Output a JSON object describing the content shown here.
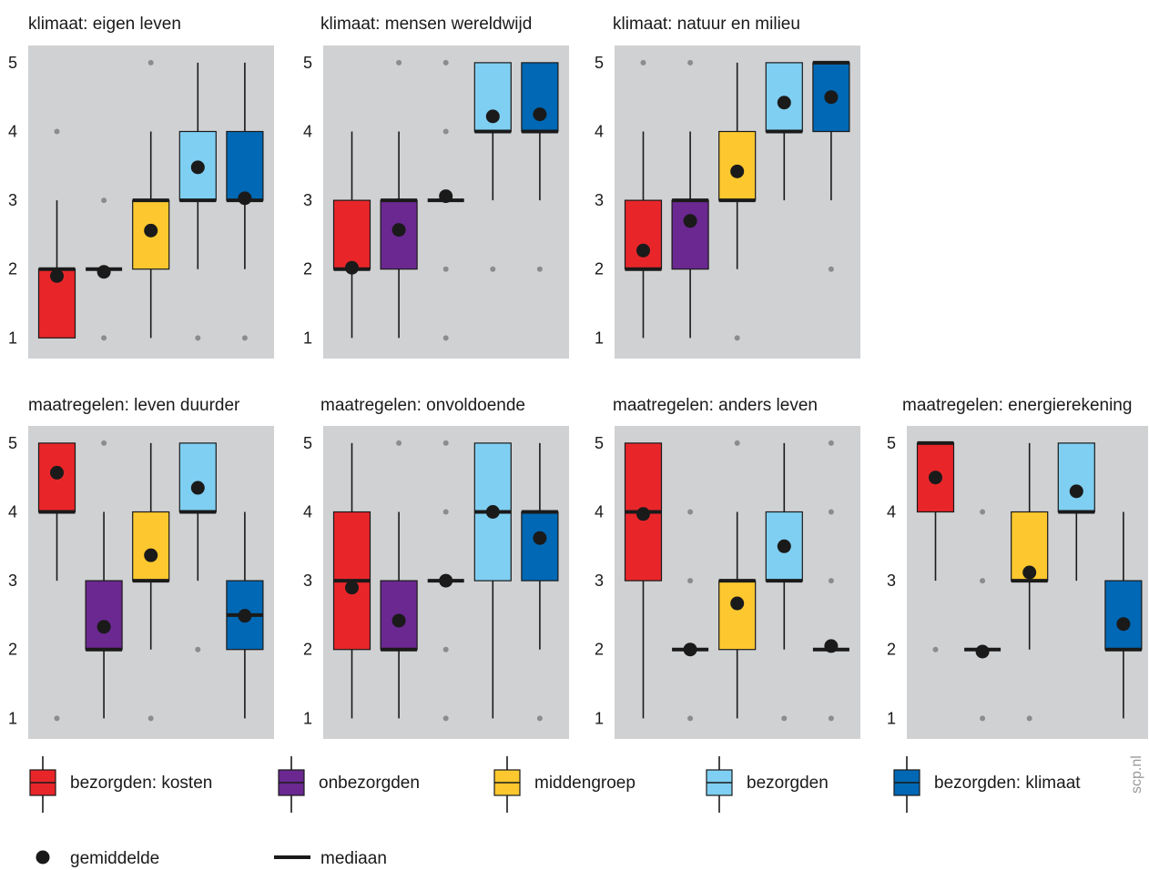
{
  "chart_data": [
    {
      "type": "box",
      "title": "klimaat: eigen leven",
      "ylim": [
        0.7,
        5.25
      ],
      "yticks": [
        "1",
        "2",
        "3",
        "4",
        "5"
      ],
      "boxes": [
        {
          "group": "bezorgden: kosten",
          "q1": 1,
          "median": 2,
          "q3": 2,
          "whisker_low": 1,
          "whisker_high": 3,
          "mean": 1.9,
          "outliers": [
            4
          ]
        },
        {
          "group": "onbezorgden",
          "q1": 2,
          "median": 2,
          "q3": 2,
          "whisker_low": 2,
          "whisker_high": 2,
          "mean": 1.96,
          "outliers": [
            1,
            3
          ]
        },
        {
          "group": "middengroep",
          "q1": 2,
          "median": 3,
          "q3": 3,
          "whisker_low": 1,
          "whisker_high": 4,
          "mean": 2.56,
          "outliers": [
            5
          ]
        },
        {
          "group": "bezorgden",
          "q1": 3,
          "median": 3,
          "q3": 4,
          "whisker_low": 2,
          "whisker_high": 5,
          "mean": 3.48,
          "outliers": [
            1
          ]
        },
        {
          "group": "bezorgden: klimaat",
          "q1": 3,
          "median": 3,
          "q3": 4,
          "whisker_low": 2,
          "whisker_high": 5,
          "mean": 3.03,
          "outliers": [
            1
          ]
        }
      ]
    },
    {
      "type": "box",
      "title": "klimaat: mensen wereldwijd",
      "ylim": [
        0.7,
        5.25
      ],
      "yticks": [
        "1",
        "2",
        "3",
        "4",
        "5"
      ],
      "boxes": [
        {
          "group": "bezorgden: kosten",
          "q1": 2,
          "median": 2,
          "q3": 3,
          "whisker_low": 1,
          "whisker_high": 4,
          "mean": 2.02,
          "outliers": []
        },
        {
          "group": "onbezorgden",
          "q1": 2,
          "median": 3,
          "q3": 3,
          "whisker_low": 1,
          "whisker_high": 4,
          "mean": 2.57,
          "outliers": [
            5
          ]
        },
        {
          "group": "middengroep",
          "q1": 3,
          "median": 3,
          "q3": 3,
          "whisker_low": 3,
          "whisker_high": 3,
          "mean": 3.06,
          "outliers": [
            1,
            2,
            4,
            5
          ]
        },
        {
          "group": "bezorgden",
          "q1": 4,
          "median": 4,
          "q3": 5,
          "whisker_low": 3,
          "whisker_high": 5,
          "mean": 4.22,
          "outliers": [
            2
          ]
        },
        {
          "group": "bezorgden: klimaat",
          "q1": 4,
          "median": 4,
          "q3": 5,
          "whisker_low": 3,
          "whisker_high": 5,
          "mean": 4.25,
          "outliers": [
            2
          ]
        }
      ]
    },
    {
      "type": "box",
      "title": "klimaat: natuur en milieu",
      "ylim": [
        0.7,
        5.25
      ],
      "yticks": [
        "1",
        "2",
        "3",
        "4",
        "5"
      ],
      "boxes": [
        {
          "group": "bezorgden: kosten",
          "q1": 2,
          "median": 2,
          "q3": 3,
          "whisker_low": 1,
          "whisker_high": 4,
          "mean": 2.27,
          "outliers": [
            5
          ]
        },
        {
          "group": "onbezorgden",
          "q1": 2,
          "median": 3,
          "q3": 3,
          "whisker_low": 1,
          "whisker_high": 4,
          "mean": 2.7,
          "outliers": [
            5
          ]
        },
        {
          "group": "middengroep",
          "q1": 3,
          "median": 3,
          "q3": 4,
          "whisker_low": 2,
          "whisker_high": 5,
          "mean": 3.42,
          "outliers": [
            1
          ]
        },
        {
          "group": "bezorgden",
          "q1": 4,
          "median": 4,
          "q3": 5,
          "whisker_low": 3,
          "whisker_high": 5,
          "mean": 4.42,
          "outliers": []
        },
        {
          "group": "bezorgden: klimaat",
          "q1": 4,
          "median": 5,
          "q3": 5,
          "whisker_low": 3,
          "whisker_high": 5,
          "mean": 4.5,
          "outliers": [
            2
          ]
        }
      ]
    },
    {
      "type": "box",
      "title": "maatregelen: leven duurder",
      "ylim": [
        0.7,
        5.25
      ],
      "yticks": [
        "1",
        "2",
        "3",
        "4",
        "5"
      ],
      "boxes": [
        {
          "group": "bezorgden: kosten",
          "q1": 4,
          "median": 4,
          "q3": 5,
          "whisker_low": 3,
          "whisker_high": 5,
          "mean": 4.57,
          "outliers": [
            1
          ]
        },
        {
          "group": "onbezorgden",
          "q1": 2,
          "median": 2,
          "q3": 3,
          "whisker_low": 1,
          "whisker_high": 4,
          "mean": 2.33,
          "outliers": [
            5
          ]
        },
        {
          "group": "middengroep",
          "q1": 3,
          "median": 3,
          "q3": 4,
          "whisker_low": 2,
          "whisker_high": 5,
          "mean": 3.37,
          "outliers": [
            1
          ]
        },
        {
          "group": "bezorgden",
          "q1": 4,
          "median": 4,
          "q3": 5,
          "whisker_low": 3,
          "whisker_high": 5,
          "mean": 4.35,
          "outliers": [
            2
          ]
        },
        {
          "group": "bezorgden: klimaat",
          "q1": 2,
          "median": 2.5,
          "q3": 3,
          "whisker_low": 1,
          "whisker_high": 4,
          "mean": 2.49,
          "outliers": []
        }
      ]
    },
    {
      "type": "box",
      "title": "maatregelen: onvoldoende",
      "ylim": [
        0.7,
        5.25
      ],
      "yticks": [
        "1",
        "2",
        "3",
        "4",
        "5"
      ],
      "boxes": [
        {
          "group": "bezorgden: kosten",
          "q1": 2,
          "median": 3,
          "q3": 4,
          "whisker_low": 1,
          "whisker_high": 5,
          "mean": 2.9,
          "outliers": []
        },
        {
          "group": "onbezorgden",
          "q1": 2,
          "median": 2,
          "q3": 3,
          "whisker_low": 1,
          "whisker_high": 4,
          "mean": 2.42,
          "outliers": [
            5
          ]
        },
        {
          "group": "middengroep",
          "q1": 3,
          "median": 3,
          "q3": 3,
          "whisker_low": 3,
          "whisker_high": 3,
          "mean": 3.0,
          "outliers": [
            1,
            2,
            4,
            5
          ]
        },
        {
          "group": "bezorgden",
          "q1": 3,
          "median": 4,
          "q3": 5,
          "whisker_low": 1,
          "whisker_high": 5,
          "mean": 4.0,
          "outliers": []
        },
        {
          "group": "bezorgden: klimaat",
          "q1": 3,
          "median": 4,
          "q3": 4,
          "whisker_low": 2,
          "whisker_high": 5,
          "mean": 3.62,
          "outliers": [
            1
          ]
        }
      ]
    },
    {
      "type": "box",
      "title": "maatregelen: anders leven",
      "ylim": [
        0.7,
        5.25
      ],
      "yticks": [
        "1",
        "2",
        "3",
        "4",
        "5"
      ],
      "boxes": [
        {
          "group": "bezorgden: kosten",
          "q1": 3,
          "median": 4,
          "q3": 5,
          "whisker_low": 1,
          "whisker_high": 5,
          "mean": 3.97,
          "outliers": []
        },
        {
          "group": "onbezorgden",
          "q1": 2,
          "median": 2,
          "q3": 2,
          "whisker_low": 2,
          "whisker_high": 2,
          "mean": 2.0,
          "outliers": [
            1,
            3,
            4
          ]
        },
        {
          "group": "middengroep",
          "q1": 2,
          "median": 3,
          "q3": 3,
          "whisker_low": 1,
          "whisker_high": 4,
          "mean": 2.67,
          "outliers": [
            5
          ]
        },
        {
          "group": "bezorgden",
          "q1": 3,
          "median": 3,
          "q3": 4,
          "whisker_low": 2,
          "whisker_high": 5,
          "mean": 3.5,
          "outliers": [
            1
          ]
        },
        {
          "group": "bezorgden: klimaat",
          "q1": 2,
          "median": 2,
          "q3": 2,
          "whisker_low": 2,
          "whisker_high": 2,
          "mean": 2.05,
          "outliers": [
            1,
            3,
            4,
            5
          ]
        }
      ]
    },
    {
      "type": "box",
      "title": "maatregelen: energierekening",
      "ylim": [
        0.7,
        5.25
      ],
      "yticks": [
        "1",
        "2",
        "3",
        "4",
        "5"
      ],
      "boxes": [
        {
          "group": "bezorgden: kosten",
          "q1": 4,
          "median": 5,
          "q3": 5,
          "whisker_low": 3,
          "whisker_high": 5,
          "mean": 4.5,
          "outliers": [
            2
          ]
        },
        {
          "group": "onbezorgden",
          "q1": 2,
          "median": 2,
          "q3": 2,
          "whisker_low": 2,
          "whisker_high": 2,
          "mean": 1.97,
          "outliers": [
            1,
            3,
            4
          ]
        },
        {
          "group": "middengroep",
          "q1": 3,
          "median": 3,
          "q3": 4,
          "whisker_low": 2,
          "whisker_high": 5,
          "mean": 3.12,
          "outliers": [
            1
          ]
        },
        {
          "group": "bezorgden",
          "q1": 4,
          "median": 4,
          "q3": 5,
          "whisker_low": 3,
          "whisker_high": 5,
          "mean": 4.3,
          "outliers": []
        },
        {
          "group": "bezorgden: klimaat",
          "q1": 2,
          "median": 2,
          "q3": 3,
          "whisker_low": 1,
          "whisker_high": 4,
          "mean": 2.37,
          "outliers": []
        }
      ]
    }
  ],
  "groups": [
    {
      "name": "bezorgden: kosten",
      "color": "#e8262a"
    },
    {
      "name": "onbezorgden",
      "color": "#6a2890"
    },
    {
      "name": "middengroep",
      "color": "#fdc82f"
    },
    {
      "name": "bezorgden",
      "color": "#7fcff2"
    },
    {
      "name": "bezorgden: klimaat",
      "color": "#0068b4"
    }
  ],
  "legend_extra": {
    "mean_label": "gemiddelde",
    "median_label": "mediaan"
  },
  "credit": "scp.nl",
  "colors": {
    "panel_bg": "#d0d1d3",
    "outlier": "#8c8c8c",
    "ink": "#1a1a1a"
  }
}
